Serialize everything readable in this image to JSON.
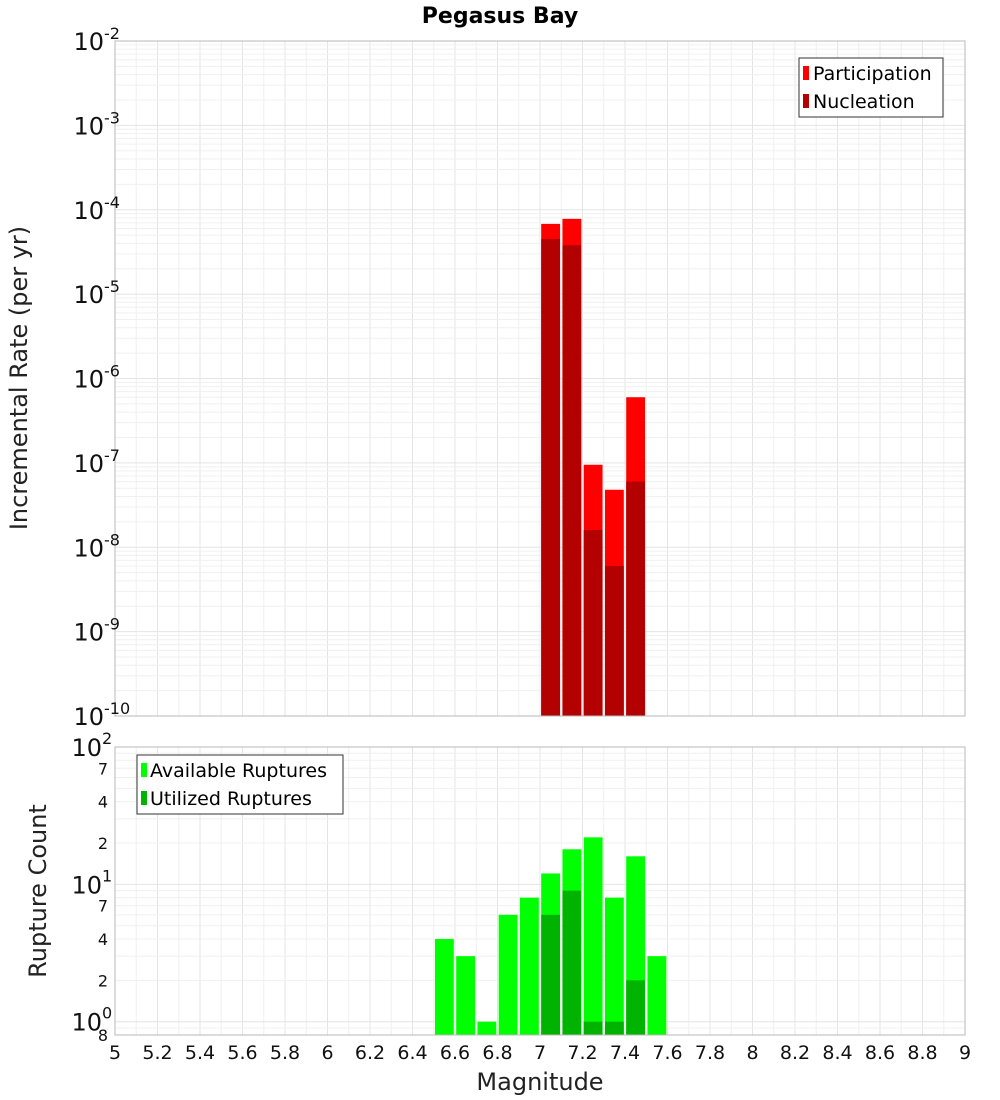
{
  "chart_data": [
    {
      "type": "bar",
      "title": "Pegasus Bay",
      "xlabel": "",
      "ylabel": "Incremental Rate (per yr)",
      "y_scale": "log",
      "ylim": [
        1e-10,
        0.01
      ],
      "grid": true,
      "legend_position": "top-right",
      "x": [
        7.05,
        7.15,
        7.25,
        7.35,
        7.45
      ],
      "series": [
        {
          "name": "Participation",
          "color": "#ff0000",
          "values": [
            6.8e-05,
            7.8e-05,
            9.5e-08,
            4.8e-08,
            6e-07
          ]
        },
        {
          "name": "Nucleation",
          "color": "#b30000",
          "values": [
            4.5e-05,
            3.8e-05,
            1.6e-08,
            6e-09,
            6e-08
          ]
        }
      ],
      "y_ticks": [
        {
          "base": "10",
          "exp": "-2"
        },
        {
          "base": "10",
          "exp": "-3"
        },
        {
          "base": "10",
          "exp": "-4"
        },
        {
          "base": "10",
          "exp": "-5"
        },
        {
          "base": "10",
          "exp": "-6"
        },
        {
          "base": "10",
          "exp": "-7"
        },
        {
          "base": "10",
          "exp": "-8"
        },
        {
          "base": "10",
          "exp": "-9"
        },
        {
          "base": "10",
          "exp": "-10"
        }
      ]
    },
    {
      "type": "bar",
      "title": "",
      "xlabel": "Magnitude",
      "ylabel": "Rupture Count",
      "y_scale": "log",
      "ylim": [
        0.8,
        100
      ],
      "xlim": [
        5,
        9
      ],
      "grid": true,
      "legend_position": "top-left",
      "x": [
        6.55,
        6.65,
        6.75,
        6.85,
        6.95,
        7.05,
        7.15,
        7.25,
        7.35,
        7.45,
        7.55
      ],
      "series": [
        {
          "name": "Available Ruptures",
          "color": "#00ff00",
          "values": [
            4,
            3,
            1,
            6,
            8,
            12,
            18,
            22,
            8,
            16,
            3
          ]
        },
        {
          "name": "Utilized Ruptures",
          "color": "#00b300",
          "values": [
            null,
            null,
            null,
            null,
            null,
            6,
            9,
            1,
            1,
            2,
            null
          ]
        }
      ],
      "x_ticks": [
        "5",
        "5.2",
        "5.4",
        "5.6",
        "5.8",
        "6",
        "6.2",
        "6.4",
        "6.6",
        "6.8",
        "7",
        "7.2",
        "7.4",
        "7.6",
        "7.8",
        "8",
        "8.2",
        "8.4",
        "8.6",
        "8.8",
        "9"
      ],
      "y_major_ticks": [
        {
          "base": "10",
          "exp": "2"
        },
        {
          "base": "10",
          "exp": "1"
        },
        {
          "base": "10",
          "exp": "0"
        }
      ],
      "y_minor_ticks": [
        "7",
        "4",
        "2",
        "7",
        "4",
        "2",
        "8"
      ]
    }
  ]
}
